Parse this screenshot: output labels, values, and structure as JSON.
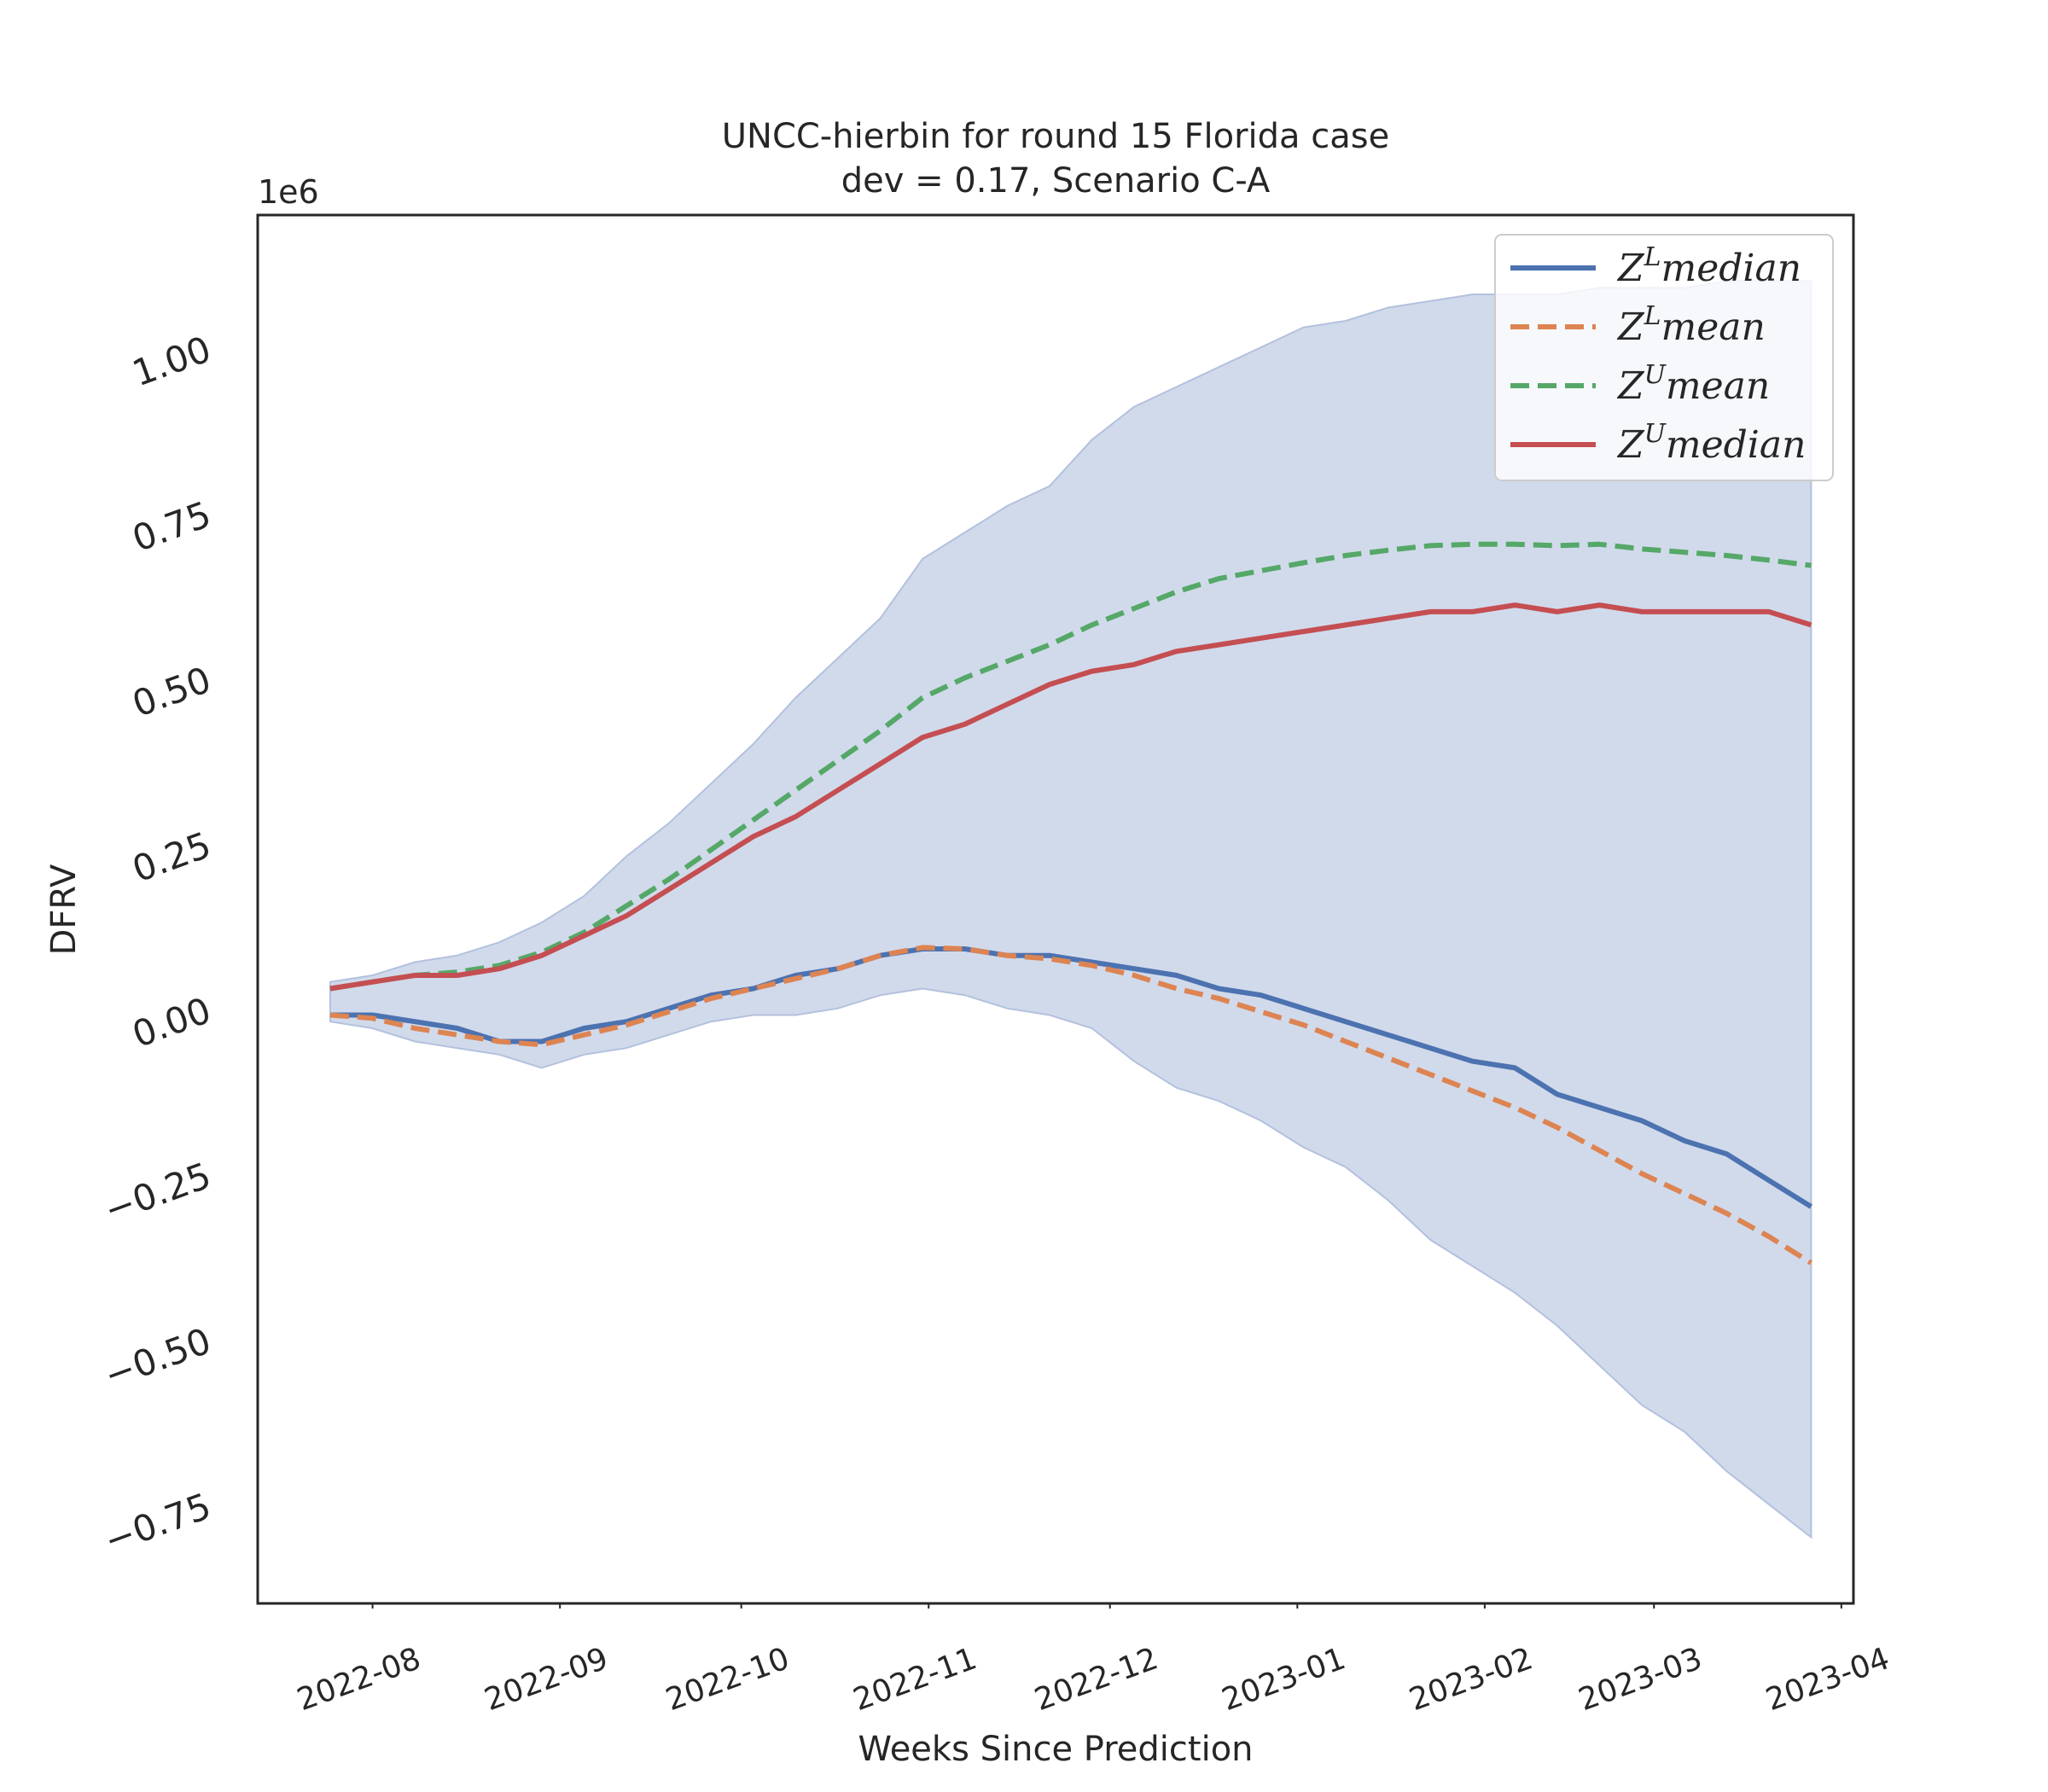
{
  "chart_data": {
    "type": "line",
    "title": "UNCC-hierbin for round 15 Florida case",
    "subtitle": "dev = 0.17, Scenario C-A",
    "xlabel": "Weeks Since Prediction",
    "ylabel": "DFRV",
    "y_offset_label": "1e6",
    "y_scale": 1000000,
    "xlim": [
      "2022-07-13",
      "2023-04-03"
    ],
    "ylim": [
      -900000,
      1200000
    ],
    "x_ticks": [
      {
        "date": "2022-08-01",
        "label": "2022-08"
      },
      {
        "date": "2022-09-01",
        "label": "2022-09"
      },
      {
        "date": "2022-10-01",
        "label": "2022-10"
      },
      {
        "date": "2022-11-01",
        "label": "2022-11"
      },
      {
        "date": "2022-12-01",
        "label": "2022-12"
      },
      {
        "date": "2023-01-01",
        "label": "2023-01"
      },
      {
        "date": "2023-02-01",
        "label": "2023-02"
      },
      {
        "date": "2023-03-01",
        "label": "2023-03"
      },
      {
        "date": "2023-04-01",
        "label": "2023-04"
      }
    ],
    "y_ticks": [
      {
        "value": 1000000,
        "label": "1.00"
      },
      {
        "value": 750000,
        "label": "0.75"
      },
      {
        "value": 500000,
        "label": "0.50"
      },
      {
        "value": 250000,
        "label": "0.25"
      },
      {
        "value": 0,
        "label": "0.00"
      },
      {
        "value": -250000,
        "label": "−0.25"
      },
      {
        "value": -500000,
        "label": "−0.50"
      },
      {
        "value": -750000,
        "label": "−0.75"
      }
    ],
    "grid": false,
    "legend_position": "top-right",
    "x": [
      "2022-07-25",
      "2022-08-01",
      "2022-08-08",
      "2022-08-15",
      "2022-08-22",
      "2022-08-29",
      "2022-09-05",
      "2022-09-12",
      "2022-09-19",
      "2022-09-26",
      "2022-10-03",
      "2022-10-10",
      "2022-10-17",
      "2022-10-24",
      "2022-10-31",
      "2022-11-07",
      "2022-11-14",
      "2022-11-21",
      "2022-11-28",
      "2022-12-05",
      "2022-12-12",
      "2022-12-19",
      "2022-12-26",
      "2023-01-02",
      "2023-01-09",
      "2023-01-16",
      "2023-01-23",
      "2023-01-30",
      "2023-02-06",
      "2023-02-13",
      "2023-02-20",
      "2023-02-27",
      "2023-03-06",
      "2023-03-13",
      "2023-03-20",
      "2023-03-27"
    ],
    "band": {
      "color": "#b3c1de",
      "upper": [
        40000,
        50000,
        70000,
        80000,
        100000,
        130000,
        170000,
        230000,
        280000,
        340000,
        400000,
        470000,
        530000,
        590000,
        680000,
        720000,
        760000,
        790000,
        860000,
        910000,
        940000,
        970000,
        1000000,
        1030000,
        1040000,
        1060000,
        1070000,
        1080000,
        1080000,
        1080000,
        1090000,
        1090000,
        1090000,
        1100000,
        1100000,
        1100000
      ],
      "lower": [
        -20000,
        -30000,
        -50000,
        -60000,
        -70000,
        -90000,
        -70000,
        -60000,
        -40000,
        -20000,
        -10000,
        -10000,
        0,
        20000,
        30000,
        20000,
        0,
        -10000,
        -30000,
        -80000,
        -120000,
        -140000,
        -170000,
        -210000,
        -240000,
        -290000,
        -350000,
        -390000,
        -430000,
        -480000,
        -540000,
        -600000,
        -640000,
        -700000,
        -750000,
        -800000
      ]
    },
    "series": [
      {
        "name": "Z^L median",
        "label_base": "Z",
        "label_sup": "L",
        "label_rest": "median",
        "color": "#4c72b0",
        "dash": false,
        "values": [
          -10000,
          -10000,
          -20000,
          -30000,
          -50000,
          -50000,
          -30000,
          -20000,
          0,
          20000,
          30000,
          50000,
          60000,
          80000,
          90000,
          90000,
          80000,
          80000,
          70000,
          60000,
          50000,
          30000,
          20000,
          0,
          -20000,
          -40000,
          -60000,
          -80000,
          -90000,
          -130000,
          -150000,
          -170000,
          -200000,
          -220000,
          -260000,
          -300000
        ]
      },
      {
        "name": "Z^L mean",
        "label_base": "Z",
        "label_sup": "L",
        "label_rest": "mean",
        "color": "#dd8452",
        "dash": true,
        "values": [
          -10000,
          -15000,
          -30000,
          -40000,
          -50000,
          -55000,
          -40000,
          -25000,
          -5000,
          15000,
          30000,
          45000,
          60000,
          80000,
          92000,
          90000,
          80000,
          75000,
          65000,
          50000,
          30000,
          15000,
          -5000,
          -25000,
          -50000,
          -75000,
          -100000,
          -125000,
          -150000,
          -180000,
          -215000,
          -250000,
          -280000,
          -310000,
          -345000,
          -385000
        ]
      },
      {
        "name": "Z^U mean",
        "label_base": "Z",
        "label_sup": "U",
        "label_rest": "mean",
        "color": "#55a868",
        "dash": true,
        "values": [
          30000,
          40000,
          50000,
          55000,
          65000,
          85000,
          115000,
          155000,
          195000,
          240000,
          285000,
          330000,
          375000,
          420000,
          470000,
          500000,
          525000,
          550000,
          580000,
          605000,
          630000,
          650000,
          662000,
          674000,
          685000,
          693000,
          700000,
          702000,
          702000,
          700000,
          702000,
          695000,
          690000,
          685000,
          678000,
          670000
        ]
      },
      {
        "name": "Z^U median",
        "label_base": "Z",
        "label_sup": "U",
        "label_rest": "median",
        "color": "#c44e52",
        "dash": false,
        "values": [
          30000,
          40000,
          50000,
          50000,
          60000,
          80000,
          110000,
          140000,
          180000,
          220000,
          260000,
          290000,
          330000,
          370000,
          410000,
          430000,
          460000,
          490000,
          510000,
          520000,
          540000,
          550000,
          560000,
          570000,
          580000,
          590000,
          600000,
          600000,
          610000,
          600000,
          610000,
          600000,
          600000,
          600000,
          600000,
          580000
        ]
      }
    ]
  }
}
